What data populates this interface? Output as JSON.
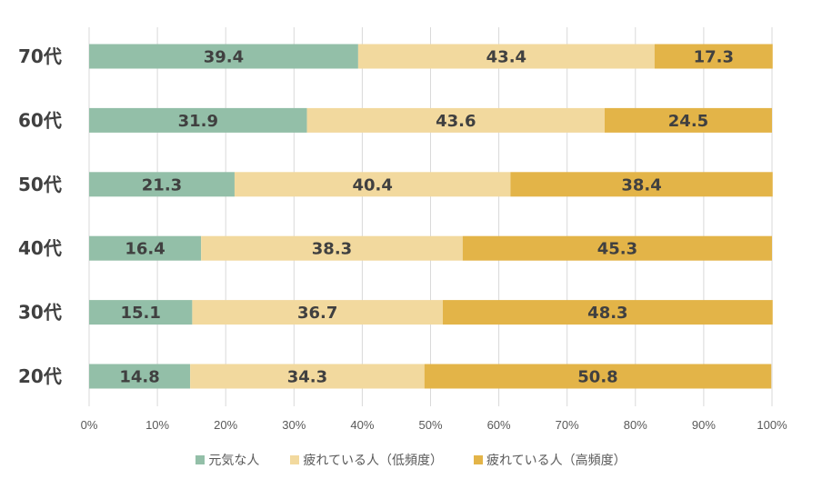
{
  "chart_data": {
    "type": "bar",
    "orientation": "horizontal",
    "stacked": "percent",
    "categories": [
      "70代",
      "60代",
      "50代",
      "40代",
      "30代",
      "20代"
    ],
    "series": [
      {
        "name": "元気な人",
        "color": "#93bfa8",
        "values": [
          39.4,
          31.9,
          21.3,
          16.4,
          15.1,
          14.8
        ]
      },
      {
        "name": "疲れている人（低頻度）",
        "color": "#f2d99e",
        "values": [
          43.4,
          43.6,
          40.4,
          38.3,
          36.7,
          34.3
        ]
      },
      {
        "name": "疲れている人（高頻度）",
        "color": "#e3b448",
        "values": [
          17.3,
          24.5,
          38.4,
          45.3,
          48.3,
          50.8
        ]
      }
    ],
    "x_ticks": [
      "0%",
      "10%",
      "20%",
      "30%",
      "40%",
      "50%",
      "60%",
      "70%",
      "80%",
      "90%",
      "100%"
    ],
    "xlim": [
      0,
      100
    ],
    "grid": true,
    "legend_position": "bottom"
  }
}
